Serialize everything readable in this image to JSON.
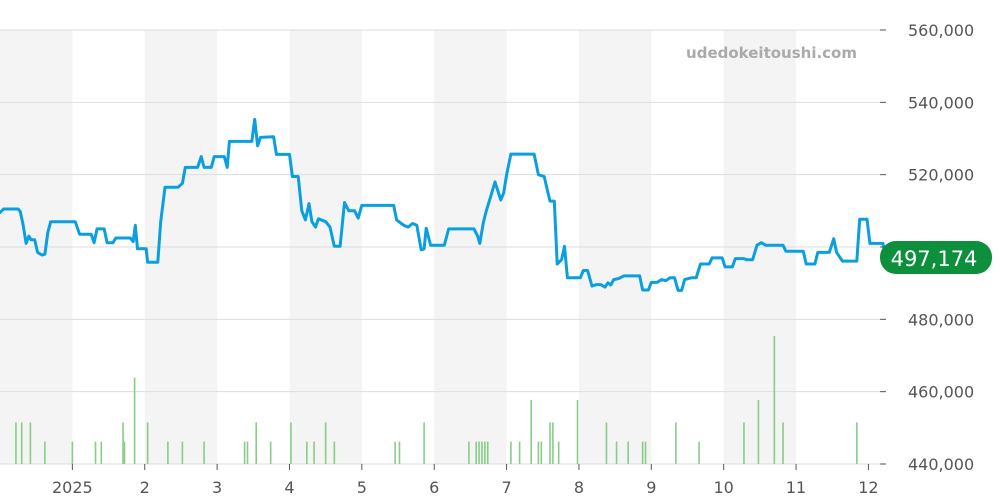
{
  "chart_data": {
    "type": "line",
    "watermark": "udedokeitoushi.com",
    "current_value_label": "497,174",
    "y_tick_labels": [
      "560,000",
      "540,000",
      "520,000",
      "500,000",
      "480,000",
      "460,000",
      "440,000"
    ],
    "ylim": [
      440000,
      560000
    ],
    "x_tick_labels": [
      "2025",
      "2",
      "3",
      "4",
      "5",
      "6",
      "7",
      "8",
      "9",
      "10",
      "11",
      "12"
    ],
    "x_tick_months": [
      1,
      2,
      3,
      4,
      5,
      6,
      7,
      8,
      9,
      10,
      11,
      12
    ],
    "xlim": [
      0.0,
      12.16
    ],
    "grid": true,
    "colors": {
      "line": "#0b9fdf",
      "volume": "#88cc88",
      "badge": "#0e8f3c",
      "band": "#f4f4f4",
      "grid": "#dddddd",
      "axis_text": "#555555",
      "watermark": "#aaaaaa"
    },
    "series": [
      {
        "values": [
          [
            0.0,
            509500
          ],
          [
            0.05,
            510500
          ],
          [
            0.25,
            510500
          ],
          [
            0.28,
            509800
          ],
          [
            0.32,
            506000
          ],
          [
            0.36,
            501000
          ],
          [
            0.4,
            503000
          ],
          [
            0.43,
            502000
          ],
          [
            0.48,
            502000
          ],
          [
            0.52,
            498500
          ],
          [
            0.58,
            497800
          ],
          [
            0.62,
            498000
          ],
          [
            0.66,
            504000
          ],
          [
            0.7,
            507000
          ],
          [
            0.82,
            507000
          ],
          [
            1.04,
            507000
          ],
          [
            1.1,
            503500
          ],
          [
            1.26,
            503500
          ],
          [
            1.3,
            501200
          ],
          [
            1.34,
            505000
          ],
          [
            1.44,
            505000
          ],
          [
            1.48,
            501200
          ],
          [
            1.56,
            501200
          ],
          [
            1.6,
            502500
          ],
          [
            1.8,
            502500
          ],
          [
            1.84,
            501500
          ],
          [
            1.87,
            506000
          ],
          [
            1.9,
            499500
          ],
          [
            1.96,
            499500
          ],
          [
            2.02,
            499500
          ],
          [
            2.04,
            495800
          ],
          [
            2.18,
            495800
          ],
          [
            2.22,
            507000
          ],
          [
            2.28,
            516500
          ],
          [
            2.46,
            516500
          ],
          [
            2.52,
            517600
          ],
          [
            2.56,
            522000
          ],
          [
            2.73,
            522000
          ],
          [
            2.78,
            525000
          ],
          [
            2.82,
            522000
          ],
          [
            2.92,
            522000
          ],
          [
            2.96,
            525000
          ],
          [
            3.1,
            525000
          ],
          [
            3.14,
            522000
          ],
          [
            3.17,
            529200
          ],
          [
            3.48,
            529200
          ],
          [
            3.52,
            535300
          ],
          [
            3.56,
            528000
          ],
          [
            3.6,
            530300
          ],
          [
            3.78,
            530500
          ],
          [
            3.82,
            525600
          ],
          [
            4.0,
            525600
          ],
          [
            4.04,
            519500
          ],
          [
            4.12,
            519500
          ],
          [
            4.17,
            510000
          ],
          [
            4.22,
            507500
          ],
          [
            4.27,
            512000
          ],
          [
            4.31,
            507000
          ],
          [
            4.36,
            505500
          ],
          [
            4.4,
            507800
          ],
          [
            4.5,
            507000
          ],
          [
            4.56,
            505500
          ],
          [
            4.62,
            500200
          ],
          [
            4.7,
            500200
          ],
          [
            4.76,
            512300
          ],
          [
            4.82,
            510000
          ],
          [
            4.9,
            510000
          ],
          [
            4.95,
            508000
          ],
          [
            5.0,
            511500
          ],
          [
            5.44,
            511500
          ],
          [
            5.48,
            507500
          ],
          [
            5.58,
            506000
          ],
          [
            5.64,
            505500
          ],
          [
            5.7,
            506500
          ],
          [
            5.76,
            506000
          ],
          [
            5.82,
            499200
          ],
          [
            5.86,
            499500
          ],
          [
            5.89,
            505200
          ],
          [
            5.95,
            500500
          ],
          [
            6.0,
            500500
          ],
          [
            6.14,
            500500
          ],
          [
            6.2,
            505000
          ],
          [
            6.55,
            505000
          ],
          [
            6.6,
            503000
          ],
          [
            6.63,
            501000
          ],
          [
            6.68,
            506800
          ],
          [
            6.72,
            510000
          ],
          [
            6.78,
            514000
          ],
          [
            6.84,
            518000
          ],
          [
            6.88,
            515500
          ],
          [
            6.92,
            513000
          ],
          [
            6.96,
            515000
          ],
          [
            7.0,
            520000
          ],
          [
            7.06,
            525700
          ],
          [
            7.38,
            525700
          ],
          [
            7.44,
            520000
          ],
          [
            7.52,
            519500
          ],
          [
            7.56,
            516000
          ],
          [
            7.6,
            512700
          ],
          [
            7.66,
            512700
          ],
          [
            7.7,
            495300
          ],
          [
            7.76,
            496500
          ],
          [
            7.8,
            500200
          ],
          [
            7.84,
            491500
          ],
          [
            8.02,
            491500
          ],
          [
            8.06,
            493500
          ],
          [
            8.12,
            493500
          ],
          [
            8.18,
            489200
          ],
          [
            8.24,
            489600
          ],
          [
            8.3,
            489600
          ],
          [
            8.36,
            488900
          ],
          [
            8.4,
            490100
          ],
          [
            8.44,
            489500
          ],
          [
            8.48,
            491000
          ],
          [
            8.55,
            491300
          ],
          [
            8.62,
            492000
          ],
          [
            8.84,
            492000
          ],
          [
            8.88,
            488100
          ],
          [
            8.96,
            488100
          ],
          [
            9.0,
            490200
          ],
          [
            9.08,
            490200
          ],
          [
            9.14,
            491000
          ],
          [
            9.2,
            490700
          ],
          [
            9.26,
            491500
          ],
          [
            9.32,
            491500
          ],
          [
            9.37,
            488000
          ],
          [
            9.42,
            488000
          ],
          [
            9.46,
            491000
          ],
          [
            9.56,
            491500
          ],
          [
            9.62,
            491500
          ],
          [
            9.68,
            495300
          ],
          [
            9.8,
            495300
          ],
          [
            9.84,
            497000
          ],
          [
            9.98,
            497000
          ],
          [
            10.02,
            494500
          ],
          [
            10.12,
            494500
          ],
          [
            10.16,
            496800
          ],
          [
            10.28,
            496800
          ],
          [
            10.32,
            496500
          ],
          [
            10.4,
            496500
          ],
          [
            10.46,
            500500
          ],
          [
            10.52,
            501200
          ],
          [
            10.58,
            500500
          ],
          [
            10.82,
            500500
          ],
          [
            10.86,
            498800
          ],
          [
            11.1,
            498800
          ],
          [
            11.14,
            495300
          ],
          [
            11.26,
            495300
          ],
          [
            11.3,
            498500
          ],
          [
            11.46,
            498500
          ],
          [
            11.52,
            502300
          ],
          [
            11.56,
            498500
          ],
          [
            11.64,
            496100
          ],
          [
            11.84,
            496100
          ],
          [
            11.88,
            507700
          ],
          [
            11.98,
            507700
          ],
          [
            12.02,
            501000
          ],
          [
            12.2,
            501000
          ],
          [
            12.24,
            497000
          ],
          [
            12.28,
            497000
          ],
          [
            12.32,
            500500
          ],
          [
            12.5,
            500500
          ],
          [
            12.56,
            497100
          ]
        ]
      }
    ],
    "volume_bars": [
      [
        0.22,
        453
      ],
      [
        0.3,
        453
      ],
      [
        0.42,
        453
      ],
      [
        0.62,
        447
      ],
      [
        1.0,
        447
      ],
      [
        1.32,
        447
      ],
      [
        1.4,
        447
      ],
      [
        1.7,
        453
      ],
      [
        1.72,
        447
      ],
      [
        1.86,
        467
      ],
      [
        2.04,
        453
      ],
      [
        2.32,
        447
      ],
      [
        2.52,
        447
      ],
      [
        2.82,
        447
      ],
      [
        3.38,
        447
      ],
      [
        3.42,
        447
      ],
      [
        3.54,
        453
      ],
      [
        3.74,
        447
      ],
      [
        4.02,
        453
      ],
      [
        4.24,
        447
      ],
      [
        4.34,
        447
      ],
      [
        4.5,
        453
      ],
      [
        4.62,
        447
      ],
      [
        5.46,
        447
      ],
      [
        5.52,
        447
      ],
      [
        5.86,
        453
      ],
      [
        6.48,
        447
      ],
      [
        6.58,
        447
      ],
      [
        6.62,
        447
      ],
      [
        6.66,
        447
      ],
      [
        6.7,
        447
      ],
      [
        6.74,
        447
      ],
      [
        7.06,
        447
      ],
      [
        7.18,
        447
      ],
      [
        7.34,
        460
      ],
      [
        7.44,
        447
      ],
      [
        7.48,
        447
      ],
      [
        7.6,
        453
      ],
      [
        7.64,
        453
      ],
      [
        7.72,
        447
      ],
      [
        7.98,
        460
      ],
      [
        8.38,
        453
      ],
      [
        8.52,
        447
      ],
      [
        8.68,
        447
      ],
      [
        8.88,
        447
      ],
      [
        8.92,
        447
      ],
      [
        9.34,
        453
      ],
      [
        9.66,
        447
      ],
      [
        10.28,
        453
      ],
      [
        10.48,
        460
      ],
      [
        10.7,
        480
      ],
      [
        10.82,
        453
      ],
      [
        11.84,
        453
      ]
    ]
  }
}
